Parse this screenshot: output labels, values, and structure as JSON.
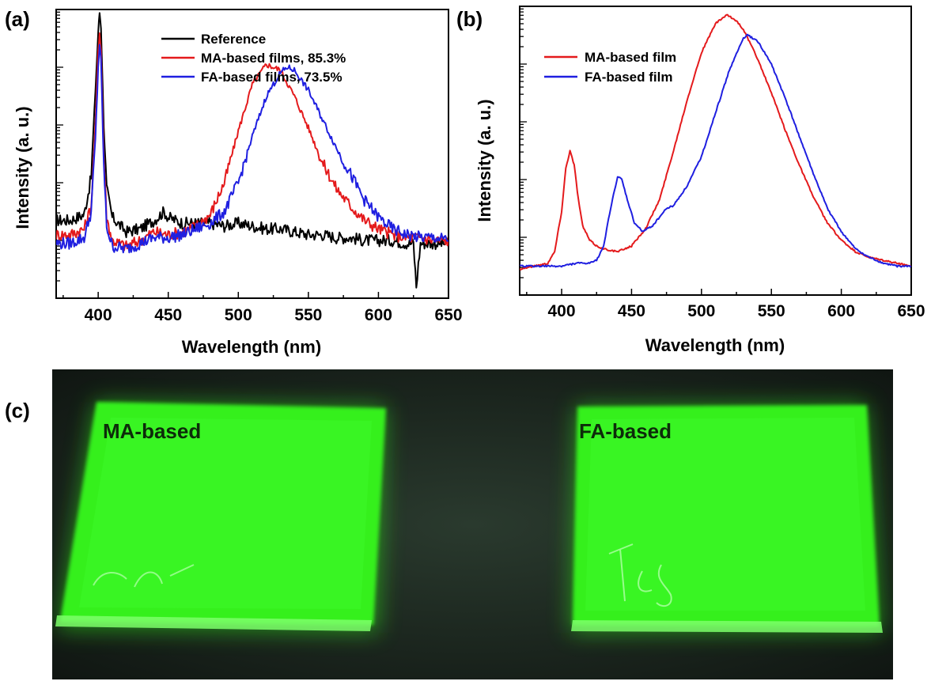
{
  "panels": {
    "a": "(a)",
    "b": "(b)",
    "c": "(c)"
  },
  "chart_data": [
    {
      "panel": "(a)",
      "type": "line",
      "xlabel": "Wavelength (nm)",
      "ylabel": "Intensity (a. u.)",
      "xlim": [
        370,
        650
      ],
      "ylim": [
        0,
        1
      ],
      "y_scale": "log (no tick labels)",
      "xticks": [
        400,
        450,
        500,
        550,
        600,
        650
      ],
      "legend_position": "top-center",
      "series": [
        {
          "name": "Reference",
          "color": "#000000",
          "x": [
            370,
            380,
            390,
            395,
            398,
            400,
            401,
            402,
            404,
            406,
            410,
            420,
            430,
            440,
            447,
            450,
            460,
            470,
            480,
            490,
            500,
            510,
            520,
            530,
            540,
            550,
            560,
            570,
            580,
            590,
            600,
            610,
            620,
            625,
            627,
            630,
            640,
            650
          ],
          "y": [
            0.27,
            0.27,
            0.29,
            0.42,
            0.72,
            0.92,
            0.99,
            0.94,
            0.6,
            0.38,
            0.28,
            0.23,
            0.24,
            0.27,
            0.3,
            0.28,
            0.26,
            0.26,
            0.26,
            0.25,
            0.26,
            0.25,
            0.24,
            0.24,
            0.23,
            0.22,
            0.22,
            0.21,
            0.21,
            0.2,
            0.2,
            0.2,
            0.19,
            0.19,
            0.04,
            0.19,
            0.19,
            0.19
          ]
        },
        {
          "name": "MA-based films, 85.3%",
          "color": "#e41a1c",
          "x": [
            370,
            380,
            390,
            395,
            398,
            400,
            401,
            402,
            404,
            406,
            410,
            420,
            430,
            440,
            450,
            460,
            470,
            480,
            490,
            500,
            510,
            520,
            530,
            540,
            550,
            560,
            570,
            580,
            590,
            600,
            610,
            620,
            630,
            640,
            650
          ],
          "y": [
            0.22,
            0.22,
            0.24,
            0.32,
            0.6,
            0.86,
            0.92,
            0.86,
            0.5,
            0.28,
            0.2,
            0.18,
            0.2,
            0.23,
            0.22,
            0.23,
            0.25,
            0.29,
            0.4,
            0.58,
            0.74,
            0.81,
            0.79,
            0.7,
            0.59,
            0.47,
            0.38,
            0.32,
            0.27,
            0.24,
            0.22,
            0.21,
            0.21,
            0.2,
            0.2
          ]
        },
        {
          "name": "FA-based films, 73.5%",
          "color": "#1f1fe0",
          "x": [
            370,
            380,
            390,
            395,
            398,
            400,
            401,
            402,
            404,
            406,
            410,
            420,
            430,
            440,
            450,
            460,
            470,
            480,
            490,
            500,
            510,
            520,
            530,
            535,
            540,
            550,
            560,
            570,
            580,
            590,
            600,
            610,
            620,
            630,
            640,
            650
          ],
          "y": [
            0.19,
            0.19,
            0.21,
            0.3,
            0.55,
            0.8,
            0.88,
            0.82,
            0.46,
            0.25,
            0.18,
            0.17,
            0.19,
            0.21,
            0.21,
            0.22,
            0.24,
            0.26,
            0.3,
            0.4,
            0.56,
            0.7,
            0.78,
            0.8,
            0.79,
            0.72,
            0.62,
            0.52,
            0.43,
            0.34,
            0.28,
            0.24,
            0.22,
            0.21,
            0.21,
            0.2
          ]
        }
      ]
    },
    {
      "panel": "(b)",
      "type": "line",
      "xlabel": "Wavelength (nm)",
      "ylabel": "Intensity (a. u.)",
      "xlim": [
        370,
        650
      ],
      "ylim": [
        0,
        1
      ],
      "y_scale": "log (no tick labels)",
      "xticks": [
        400,
        450,
        500,
        550,
        600,
        650
      ],
      "legend_position": "top-left",
      "series": [
        {
          "name": "MA-based film",
          "color": "#e41a1c",
          "x": [
            370,
            380,
            390,
            395,
            400,
            403,
            406,
            409,
            412,
            415,
            420,
            425,
            430,
            440,
            450,
            460,
            470,
            480,
            490,
            500,
            510,
            518,
            525,
            530,
            540,
            550,
            560,
            570,
            580,
            590,
            600,
            610,
            620,
            630,
            640,
            650
          ],
          "y": [
            0.09,
            0.1,
            0.11,
            0.15,
            0.29,
            0.44,
            0.5,
            0.45,
            0.33,
            0.24,
            0.19,
            0.17,
            0.16,
            0.15,
            0.17,
            0.23,
            0.33,
            0.5,
            0.68,
            0.84,
            0.94,
            0.97,
            0.95,
            0.92,
            0.82,
            0.7,
            0.57,
            0.45,
            0.34,
            0.25,
            0.19,
            0.15,
            0.13,
            0.12,
            0.11,
            0.1
          ]
        },
        {
          "name": "FA-based film",
          "color": "#1f1fe0",
          "x": [
            370,
            380,
            390,
            400,
            410,
            420,
            425,
            430,
            435,
            440,
            443,
            447,
            452,
            458,
            465,
            470,
            475,
            480,
            490,
            500,
            510,
            520,
            530,
            533,
            540,
            550,
            560,
            570,
            580,
            590,
            600,
            610,
            620,
            630,
            640,
            650
          ],
          "y": [
            0.1,
            0.1,
            0.1,
            0.1,
            0.11,
            0.11,
            0.12,
            0.17,
            0.3,
            0.41,
            0.4,
            0.33,
            0.25,
            0.22,
            0.24,
            0.27,
            0.3,
            0.31,
            0.38,
            0.48,
            0.63,
            0.78,
            0.89,
            0.9,
            0.88,
            0.8,
            0.68,
            0.55,
            0.42,
            0.3,
            0.22,
            0.16,
            0.13,
            0.11,
            0.1,
            0.1
          ]
        }
      ]
    }
  ],
  "photo": {
    "left_label": "MA-based",
    "right_label": "FA-based"
  }
}
